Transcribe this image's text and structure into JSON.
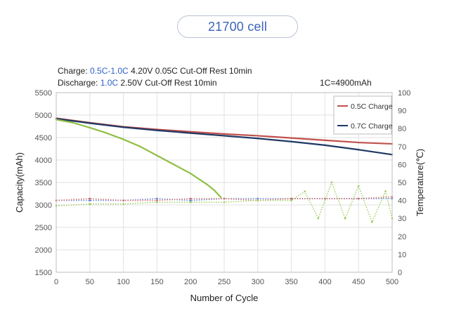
{
  "title": "21700 cell",
  "conditions": {
    "charge": {
      "prefix": "Charge: ",
      "rate": "0.5C-1.0C",
      "rest": " 4.20V 0.05C Cut-Off Rest 10min"
    },
    "discharge": {
      "prefix": "Discharge: ",
      "rate": "1.0C",
      "rest": " 2.50V Cut-Off Rest 10min"
    },
    "c_rating": "1C=4900mAh"
  },
  "colors": {
    "series_05c": "#c0504d",
    "series_07c": "#1f3864",
    "series_green": "#8fbf45",
    "temp_blue": "#5b7fd0",
    "temp_red": "#d06a6a",
    "temp_green": "#9ccc5a",
    "grid": "#e2e2e2"
  },
  "chart_data": {
    "type": "line",
    "xlabel": "Number of Cycle",
    "ylabel": "Capacity(mAh)",
    "y2label": "Temperature(℃)",
    "xlim": [
      0,
      500
    ],
    "ylim": [
      1500,
      5500
    ],
    "y2lim": [
      0,
      100
    ],
    "xticks": [
      "0",
      "50",
      "100",
      "150",
      "200",
      "250",
      "300",
      "350",
      "400",
      "450",
      "500"
    ],
    "yticks": [
      "1500",
      "2000",
      "2500",
      "3000",
      "3500",
      "4000",
      "4500",
      "5000",
      "5500"
    ],
    "y2ticks": [
      "0",
      "10",
      "20",
      "30",
      "40",
      "50",
      "60",
      "70",
      "80",
      "90",
      "100"
    ],
    "legend_position": "top-right",
    "series": [
      {
        "name": "0.5C Charge",
        "color": "#c0504d",
        "x": [
          0,
          50,
          100,
          150,
          200,
          250,
          300,
          350,
          400,
          450,
          500
        ],
        "values": [
          4930,
          4830,
          4740,
          4680,
          4630,
          4580,
          4540,
          4490,
          4440,
          4390,
          4360
        ]
      },
      {
        "name": "0.7C Charge",
        "color": "#1f3864",
        "x": [
          0,
          50,
          100,
          150,
          200,
          250,
          300,
          350,
          400,
          450,
          500
        ],
        "values": [
          4920,
          4820,
          4730,
          4660,
          4600,
          4540,
          4480,
          4410,
          4330,
          4230,
          4120
        ]
      },
      {
        "color": "#8fbf45",
        "x": [
          0,
          25,
          50,
          75,
          100,
          125,
          150,
          175,
          200,
          225,
          235,
          245
        ],
        "values": [
          4900,
          4830,
          4720,
          4600,
          4460,
          4300,
          4100,
          3900,
          3700,
          3450,
          3330,
          3170
        ]
      }
    ],
    "temperature_series": [
      {
        "color": "#5b7fd0",
        "x": [
          0,
          50,
          100,
          150,
          200,
          250,
          300,
          350,
          400,
          450,
          500
        ],
        "values": [
          40,
          40,
          40,
          41,
          40,
          41,
          41,
          41,
          41,
          41,
          41
        ]
      },
      {
        "color": "#d06a6a",
        "x": [
          0,
          50,
          100,
          150,
          200,
          250,
          300,
          350,
          400,
          450,
          500
        ],
        "values": [
          40,
          41,
          40,
          40,
          41,
          41,
          40,
          41,
          41,
          41,
          42
        ]
      },
      {
        "color": "#9ccc5a",
        "x": [
          0,
          50,
          100,
          150,
          200,
          250,
          300,
          350,
          370,
          390,
          410,
          430,
          450,
          470,
          490,
          500
        ],
        "values": [
          37,
          38,
          38,
          39,
          39,
          39,
          40,
          40,
          45,
          30,
          50,
          30,
          48,
          28,
          45,
          30
        ]
      }
    ]
  }
}
